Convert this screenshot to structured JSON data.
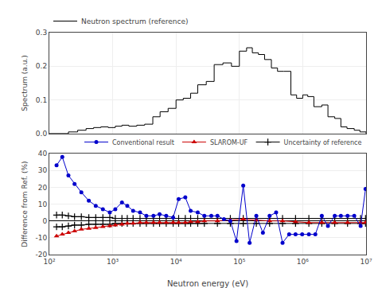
{
  "chart_data": [
    {
      "type": "step",
      "ylabel": "Spectrum (a.u.)",
      "log": "x",
      "grid": true,
      "legend": "upper left",
      "tick_labels": "y",
      "xlim": [
        100,
        10000000
      ],
      "xticks": [
        100,
        1000,
        10000,
        100000,
        1000000,
        10000000
      ],
      "ylim": [
        0.0,
        0.3
      ],
      "yticks": [
        {
          "value": 0.0,
          "label": "0.0"
        },
        0.1,
        0.2,
        0.3
      ],
      "series": [
        {
          "name": "Neutron spectrum (reference)",
          "color": "#000000",
          "x": [
            100,
            150,
            200,
            280,
            380,
            500,
            650,
            850,
            1100,
            1400,
            1800,
            2400,
            3200,
            4300,
            5600,
            7500,
            10000,
            13000,
            17000,
            22000,
            30000,
            40000,
            55000,
            75000,
            100000,
            130000,
            160000,
            200000,
            250000,
            320000,
            400000,
            500000,
            650000,
            800000,
            1000000,
            1200000,
            1500000,
            2000000,
            2500000,
            3200000,
            4000000,
            5000000,
            6500000,
            8000000,
            10000000
          ],
          "values": [
            0.0,
            0.0,
            0.005,
            0.01,
            0.015,
            0.018,
            0.02,
            0.018,
            0.022,
            0.025,
            0.022,
            0.025,
            0.028,
            0.05,
            0.065,
            0.075,
            0.1,
            0.105,
            0.12,
            0.145,
            0.155,
            0.205,
            0.21,
            0.2,
            0.245,
            0.255,
            0.24,
            0.235,
            0.22,
            0.195,
            0.185,
            0.185,
            0.115,
            0.105,
            0.115,
            0.11,
            0.08,
            0.085,
            0.05,
            0.045,
            0.02,
            0.015,
            0.01,
            0.005,
            0.0
          ]
        }
      ]
    },
    {
      "type": "line",
      "xlabel": "Neutron energy (eV)",
      "ylabel": "Difference from Ref. (%)",
      "log": "x",
      "grid": true,
      "legend": "upper right",
      "xlim": [
        100,
        10000000
      ],
      "xticks": [
        {
          "value": 100,
          "label": "10²"
        },
        {
          "value": 1000,
          "label": "10³"
        },
        {
          "value": 10000,
          "label": "10⁴"
        },
        {
          "value": 100000,
          "label": "10⁵"
        },
        {
          "value": 1000000,
          "label": "10⁶"
        },
        {
          "value": 10000000,
          "label": "10⁷"
        }
      ],
      "ylim": [
        -20,
        40
      ],
      "yticks": [
        -20,
        -10,
        0,
        10,
        20,
        30,
        40
      ],
      "series": [
        {
          "name": "Uncertainty of reference",
          "color": "#000000",
          "marker": "plus",
          "x": [
            130,
            160,
            200,
            250,
            320,
            420,
            540,
            700,
            900,
            1100,
            1400,
            1700,
            2100,
            2700,
            3400,
            4400,
            5500,
            7000,
            9000,
            11000,
            14000,
            17000,
            22000,
            28000,
            45000,
            72000,
            115000,
            185000,
            300000,
            480000,
            770000,
            1250000,
            2000000,
            3200000,
            5100000,
            8200000,
            9800000
          ],
          "values": [
            3.5,
            3.5,
            3,
            2.5,
            2.5,
            2,
            2,
            2,
            2,
            1.5,
            1.5,
            1.5,
            1.5,
            1.5,
            1.5,
            1.5,
            1.5,
            1.5,
            1.5,
            1.5,
            1.5,
            1.5,
            1.5,
            1.5,
            1.5,
            1.5,
            1.5,
            1.5,
            1.5,
            1.5,
            1.5,
            1.5,
            1.5,
            1.5,
            1.5,
            1.5,
            1.5
          ]
        },
        {
          "color": "#000000",
          "marker": "plus",
          "x": [
            130,
            160,
            200,
            250,
            320,
            420,
            540,
            700,
            900,
            1100,
            1400,
            1700,
            2100,
            2700,
            3400,
            4400,
            5500,
            7000,
            9000,
            11000,
            14000,
            17000,
            22000,
            28000,
            45000,
            72000,
            115000,
            185000,
            300000,
            480000,
            770000,
            1250000,
            2000000,
            3200000,
            5100000,
            8200000,
            9800000
          ],
          "values": [
            -3.5,
            -3.5,
            -3,
            -2.5,
            -2.5,
            -2,
            -2,
            -2,
            -2,
            -1.5,
            -1.5,
            -1.5,
            -1.5,
            -1.5,
            -1.5,
            -1.5,
            -1.5,
            -1.5,
            -1.5,
            -1.5,
            -1.5,
            -1.5,
            -1.5,
            -1.5,
            -1.5,
            -1.5,
            -1.5,
            -1.5,
            -1.5,
            -1.5,
            -1.5,
            -1.5,
            -1.5,
            -1.5,
            -1.5,
            -1.5,
            -1.5
          ]
        },
        {
          "name": "SLAROM-UF",
          "color": "#cc0000",
          "marker": "triangle",
          "x": [
            130,
            160,
            200,
            250,
            320,
            420,
            540,
            700,
            900,
            1100,
            1400,
            1700,
            2100,
            2700,
            3400,
            4400,
            5500,
            7000,
            9000,
            11000,
            14000,
            17000,
            22000,
            28000,
            45000,
            72000,
            115000,
            185000,
            300000,
            480000,
            770000,
            1250000,
            2000000,
            3200000,
            5100000,
            8200000,
            9800000
          ],
          "values": [
            -9,
            -8,
            -7,
            -6,
            -5,
            -4.5,
            -4,
            -3.5,
            -3,
            -2.5,
            -2,
            -1.5,
            -1.5,
            -1,
            -1,
            -1,
            -1,
            -1,
            -1,
            -1,
            -1,
            -0.5,
            -0.5,
            0,
            0,
            0.5,
            1,
            0.5,
            0,
            0,
            -0.5,
            -1,
            -1,
            -1,
            -1,
            -1,
            -1
          ]
        },
        {
          "name": "Conventional result",
          "color": "#0000cc",
          "marker": "circle",
          "x": [
            130,
            160,
            200,
            250,
            320,
            420,
            540,
            700,
            900,
            1100,
            1400,
            1700,
            2100,
            2700,
            3400,
            4400,
            5500,
            7000,
            9000,
            11000,
            14000,
            17000,
            22000,
            28000,
            36000,
            45000,
            57000,
            72000,
            90000,
            115000,
            145000,
            185000,
            235000,
            300000,
            380000,
            480000,
            610000,
            770000,
            980000,
            1250000,
            1580000,
            2000000,
            2500000,
            3200000,
            4000000,
            5100000,
            6500000,
            8200000,
            9800000
          ],
          "values": [
            33,
            38,
            27,
            22,
            17,
            12,
            9,
            7,
            5,
            7,
            11,
            9,
            6,
            5,
            3,
            3,
            4,
            3,
            2,
            13,
            14,
            6,
            5,
            3,
            3,
            3,
            1,
            0,
            -12,
            21,
            -13,
            3,
            -7,
            3,
            5,
            -13,
            -8,
            -8,
            -8,
            -8,
            -8,
            3,
            -3,
            3,
            3,
            3,
            3,
            -3,
            19
          ]
        }
      ]
    }
  ]
}
